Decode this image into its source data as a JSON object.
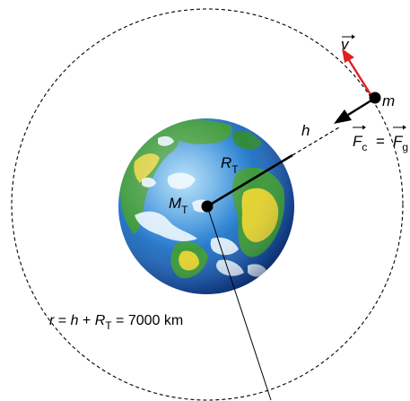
{
  "labels": {
    "velocity": "v",
    "mass": "m",
    "force_c": "F",
    "force_c_sub": "c",
    "equals": "=",
    "force_g": "F",
    "force_g_sub": "g",
    "height": "h",
    "radius_main": "R",
    "radius_sub": "T",
    "earth_mass_main": "M",
    "earth_mass_sub": "T"
  },
  "formula": {
    "r": "r",
    "eq1": " = ",
    "h": "h",
    "plus": " + ",
    "R": "R",
    "R_sub": "T",
    "eq2": " = 7000 km"
  },
  "colors": {
    "velocity_arrow": "#e02020",
    "ocean": "#2f86d6",
    "land_green": "#3f9a3c",
    "land_yellow": "#e2d232",
    "cloud": "#e8f3fb",
    "orbit": "#000000"
  }
}
